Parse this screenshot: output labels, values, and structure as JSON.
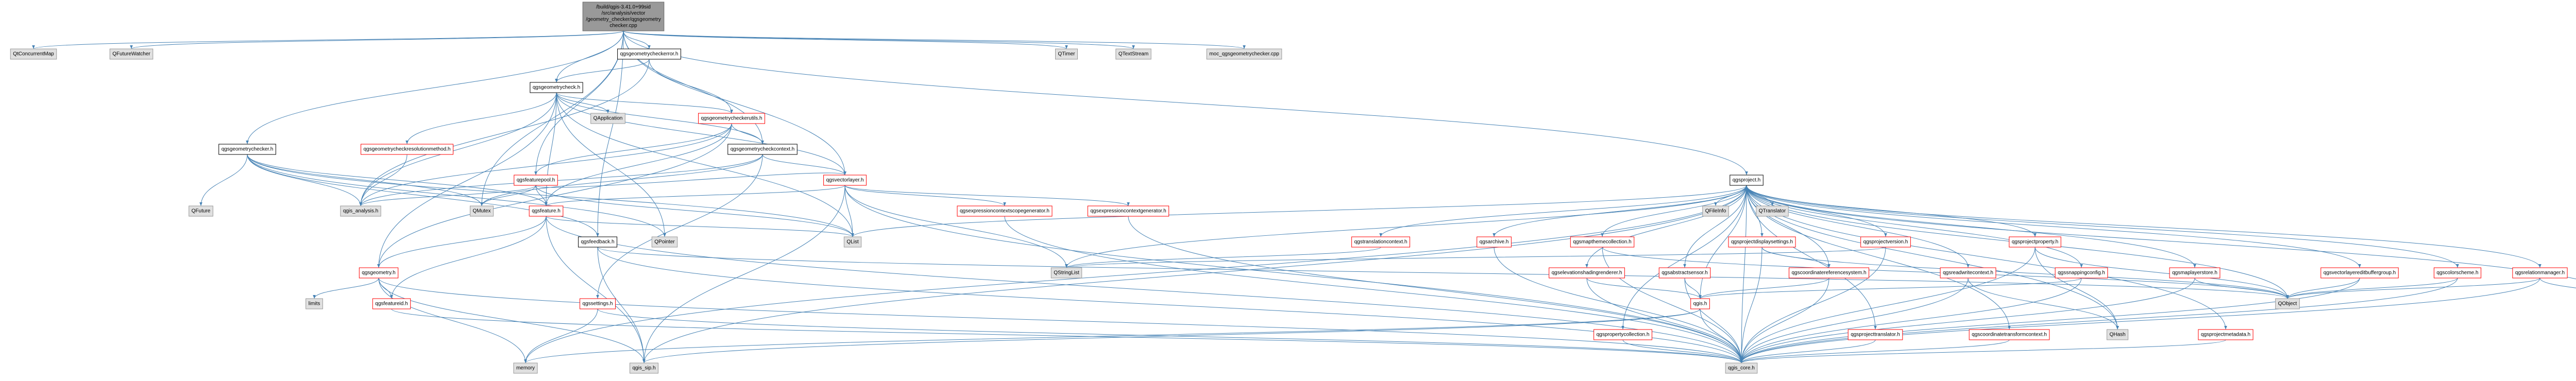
{
  "nodes": [
    {
      "lines": [
        "/build/qgis-3.41.0+99sid",
        "/src/analysis/vector",
        "/geometry_checker/qgsgeometry",
        "checker.cpp"
      ]
    },
    {
      "label": "QtConcurrentMap"
    },
    {
      "label": "QFutureWatcher"
    },
    {
      "label": "qgsgeometrycheckerror.h"
    },
    {
      "label": "QTimer"
    },
    {
      "label": "QTextStream"
    },
    {
      "label": "moc_qgsgeometrychecker.cpp"
    },
    {
      "label": "qgsgeometrycheck.h"
    },
    {
      "label": "QApplication"
    },
    {
      "label": "qgsgeometrycheckerutils.h"
    },
    {
      "label": "qgsgeometrychecker.h"
    },
    {
      "label": "qgsgeometrycheckresolutionmethod.h"
    },
    {
      "label": "qgsgeometrycheckcontext.h"
    },
    {
      "label": "qgsfeaturepool.h"
    },
    {
      "label": "qgsvectorlayer.h"
    },
    {
      "label": "qgsproject.h"
    },
    {
      "label": "QFuture"
    },
    {
      "label": "qgis_analysis.h"
    },
    {
      "label": "QMutex"
    },
    {
      "label": "qgsfeature.h"
    },
    {
      "label": "qgsexpressioncontextscopegenerator.h"
    },
    {
      "label": "qgsexpressioncontextgenerator.h"
    },
    {
      "label": "QFileInfo"
    },
    {
      "label": "QTranslator"
    },
    {
      "label": "qgsfeedback.h"
    },
    {
      "label": "QPointer"
    },
    {
      "label": "QList"
    },
    {
      "label": "qgstranslationcontext.h"
    },
    {
      "label": "qgsarchive.h"
    },
    {
      "label": "qgsmapthemecollection.h"
    },
    {
      "label": "qgsprojectdisplaysettings.h"
    },
    {
      "label": "qgsprojectversion.h"
    },
    {
      "label": "qgsprojectproperty.h"
    },
    {
      "label": "qgsgeometry.h"
    },
    {
      "label": "QStringList"
    },
    {
      "label": "qgselevationshadingrenderer.h"
    },
    {
      "label": "qgsabstractsensor.h"
    },
    {
      "label": "qgscoordinatereferencesystem.h"
    },
    {
      "label": "qgsreadwritecontext.h"
    },
    {
      "label": "qgssnappingconfig.h"
    },
    {
      "label": "qgsmaplayerstore.h"
    },
    {
      "label": "qgsvectorlayereditbuffergroup.h"
    },
    {
      "label": "qgscolorscheme.h"
    },
    {
      "label": "qgsrelationmanager.h"
    },
    {
      "label": "limits"
    },
    {
      "label": "qgsfeatureid.h"
    },
    {
      "label": "qgssettings.h"
    },
    {
      "label": "qgis.h"
    },
    {
      "label": "QObject"
    },
    {
      "label": "QPair"
    },
    {
      "label": "qgspropertycollection.h"
    },
    {
      "label": "qgsprojecttranslator.h"
    },
    {
      "label": "qgscoordinatetransformcontext.h"
    },
    {
      "label": "QHash"
    },
    {
      "label": "qgsprojectmetadata.h"
    },
    {
      "label": "memory"
    },
    {
      "label": "qgis_sip.h"
    },
    {
      "label": "qgis_core.h"
    }
  ]
}
